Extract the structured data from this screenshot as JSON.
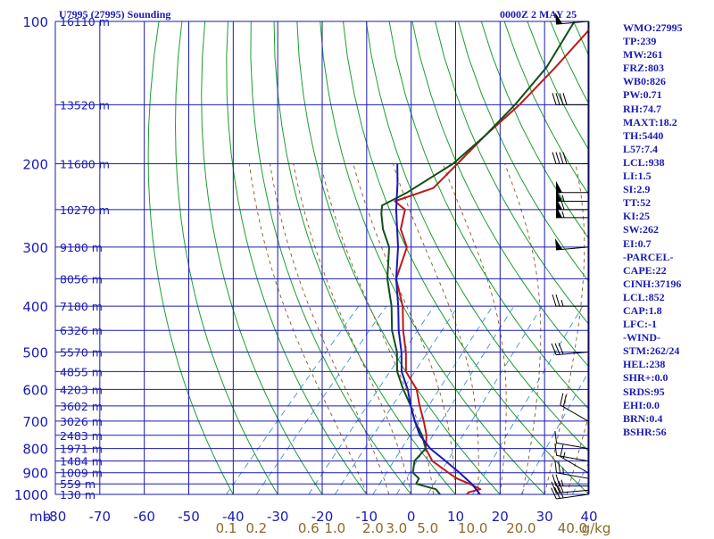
{
  "header": {
    "station": "U7995 (27995) Sounding",
    "time": "0000Z  2 MAY 25"
  },
  "indices": [
    "WMO:27995",
    "TP:239",
    "MW:261",
    "FRZ:803",
    "WB0:826",
    "PW:0.71",
    "RH:74.7",
    "MAXT:18.2",
    "TH:5440",
    "L57:7.4",
    "LCL:938",
    "LI:1.5",
    "SI:2.9",
    "TT:52",
    "KI:25",
    "SW:262",
    "EI:0.7",
    "-PARCEL-",
    "CAPE:22",
    "CINH:37196",
    "LCL:852",
    "CAP:1.8",
    "LFC:-1",
    "-WIND-",
    "STM:262/24",
    "HEL:238",
    "SHR+:0.0",
    "SRDS:95",
    "EHI:0.0",
    "BRN:0.4",
    "BSHR:56"
  ],
  "colors": {
    "frame": "#1a1ab4",
    "isotherm": "#1a1ab4",
    "dry_adiabat": "#1c9e2c",
    "moist_adiabat": "#8a5a20",
    "mixing_ratio": "#3c8ee0",
    "temperature": "#c01818",
    "dewpoint": "#105018",
    "parcel": "#1a1ab4",
    "labels": "#1a1ab4",
    "mixing_label": "#8a6a2a",
    "wind": "#000000"
  },
  "chart_data": {
    "type": "line",
    "title": "U7995 (27995) Sounding",
    "xlabel": "",
    "ylabel": "mb",
    "xlim": [
      -80,
      40
    ],
    "ylim": [
      1000,
      100
    ],
    "y_scale": "log",
    "grid": true,
    "x_ticks": [
      "-80",
      "-70",
      "-60",
      "-50",
      "-40",
      "-30",
      "-20",
      "-10",
      "0",
      "10",
      "20",
      "30",
      "40"
    ],
    "pressure_ticks": [
      "100",
      "200",
      "300",
      "400",
      "500",
      "600",
      "700",
      "800",
      "900",
      "1000"
    ],
    "mixing_ratio_ticks": [
      "0.1",
      "0.2",
      "0.6",
      "1.0",
      "2.0",
      "3.0",
      "5.0",
      "10.0",
      "20.0",
      "40.0"
    ],
    "mixing_ratio_unit": "g/kg",
    "height_labels": [
      {
        "p": 100,
        "label": "16110 m"
      },
      {
        "p": 150,
        "label": "13520 m"
      },
      {
        "p": 200,
        "label": "11680 m"
      },
      {
        "p": 250,
        "label": "10270 m"
      },
      {
        "p": 300,
        "label": "9180 m"
      },
      {
        "p": 350,
        "label": "8056 m"
      },
      {
        "p": 400,
        "label": "7180 m"
      },
      {
        "p": 450,
        "label": "6326 m"
      },
      {
        "p": 500,
        "label": "5570 m"
      },
      {
        "p": 550,
        "label": "4855 m"
      },
      {
        "p": 600,
        "label": "4203 m"
      },
      {
        "p": 650,
        "label": "3602 m"
      },
      {
        "p": 700,
        "label": "3026 m"
      },
      {
        "p": 750,
        "label": "2483 m"
      },
      {
        "p": 800,
        "label": "1971 m"
      },
      {
        "p": 850,
        "label": "1484 m"
      },
      {
        "p": 900,
        "label": "1009 m"
      },
      {
        "p": 950,
        "label": "559 m"
      },
      {
        "p": 1000,
        "label": "130 m"
      }
    ],
    "series": [
      {
        "key": "temperature",
        "points": [
          [
            1000,
            12.5
          ],
          [
            990,
            12.5
          ],
          [
            975,
            14.5
          ],
          [
            960,
            12.5
          ],
          [
            925,
            7.0
          ],
          [
            900,
            4.0
          ],
          [
            850,
            -2.0
          ],
          [
            800,
            -6.0
          ],
          [
            750,
            -8.5
          ],
          [
            700,
            -12.0
          ],
          [
            650,
            -16.0
          ],
          [
            600,
            -20.0
          ],
          [
            550,
            -26.0
          ],
          [
            500,
            -30.0
          ],
          [
            450,
            -35.0
          ],
          [
            400,
            -40.0
          ],
          [
            350,
            -47.0
          ],
          [
            300,
            -51.0
          ],
          [
            275,
            -56.0
          ],
          [
            250,
            -59.0
          ],
          [
            240,
            -63.0
          ],
          [
            225,
            -57.0
          ],
          [
            200,
            -56.5
          ],
          [
            175,
            -56.0
          ],
          [
            150,
            -54.5
          ],
          [
            125,
            -54.0
          ],
          [
            100,
            -54.0
          ]
        ]
      },
      {
        "key": "dewpoint",
        "points": [
          [
            1000,
            6.5
          ],
          [
            975,
            4.5
          ],
          [
            950,
            -1.0
          ],
          [
            925,
            -1.5
          ],
          [
            900,
            -4.0
          ],
          [
            850,
            -6.0
          ],
          [
            800,
            -6.0
          ],
          [
            750,
            -9.5
          ],
          [
            700,
            -14.0
          ],
          [
            650,
            -18.0
          ],
          [
            600,
            -23.0
          ],
          [
            550,
            -28.0
          ],
          [
            500,
            -32.0
          ],
          [
            450,
            -37.5
          ],
          [
            400,
            -42.5
          ],
          [
            350,
            -49.0
          ],
          [
            300,
            -55.0
          ],
          [
            275,
            -60.0
          ],
          [
            255,
            -63.5
          ],
          [
            245,
            -65.0
          ],
          [
            230,
            -62.0
          ],
          [
            200,
            -57.5
          ],
          [
            175,
            -56.0
          ],
          [
            150,
            -55.5
          ],
          [
            125,
            -56.0
          ],
          [
            100,
            -59.0
          ]
        ]
      },
      {
        "key": "parcel",
        "points": [
          [
            1000,
            15.5
          ],
          [
            950,
            11.5
          ],
          [
            900,
            6.5
          ],
          [
            850,
            1.0
          ],
          [
            800,
            -5.0
          ],
          [
            750,
            -10.0
          ],
          [
            700,
            -14.0
          ],
          [
            650,
            -18.0
          ],
          [
            600,
            -22.0
          ],
          [
            550,
            -27.0
          ],
          [
            500,
            -31.0
          ],
          [
            450,
            -36.0
          ],
          [
            400,
            -41.0
          ],
          [
            350,
            -47.0
          ],
          [
            300,
            -53.0
          ],
          [
            250,
            -61.0
          ],
          [
            220,
            -66.0
          ],
          [
            200,
            -70.0
          ]
        ]
      }
    ],
    "wind_barbs": [
      {
        "p": 1000,
        "dir": 262,
        "spd": 30
      },
      {
        "p": 980,
        "dir": 265,
        "spd": 30
      },
      {
        "p": 960,
        "dir": 270,
        "spd": 25
      },
      {
        "p": 925,
        "dir": 280,
        "spd": 25
      },
      {
        "p": 900,
        "dir": 300,
        "spd": 15
      },
      {
        "p": 850,
        "dir": 280,
        "spd": 10
      },
      {
        "p": 800,
        "dir": 280,
        "spd": 10
      },
      {
        "p": 700,
        "dir": 300,
        "spd": 20
      },
      {
        "p": 500,
        "dir": 265,
        "spd": 30
      },
      {
        "p": 400,
        "dir": 270,
        "spd": 25
      },
      {
        "p": 300,
        "dir": 265,
        "spd": 50
      },
      {
        "p": 260,
        "dir": 270,
        "spd": 55
      },
      {
        "p": 250,
        "dir": 270,
        "spd": 60
      },
      {
        "p": 240,
        "dir": 270,
        "spd": 55
      },
      {
        "p": 230,
        "dir": 270,
        "spd": 50
      },
      {
        "p": 200,
        "dir": 270,
        "spd": 40
      },
      {
        "p": 150,
        "dir": 270,
        "spd": 40
      },
      {
        "p": 100,
        "dir": 265,
        "spd": 50
      }
    ]
  }
}
